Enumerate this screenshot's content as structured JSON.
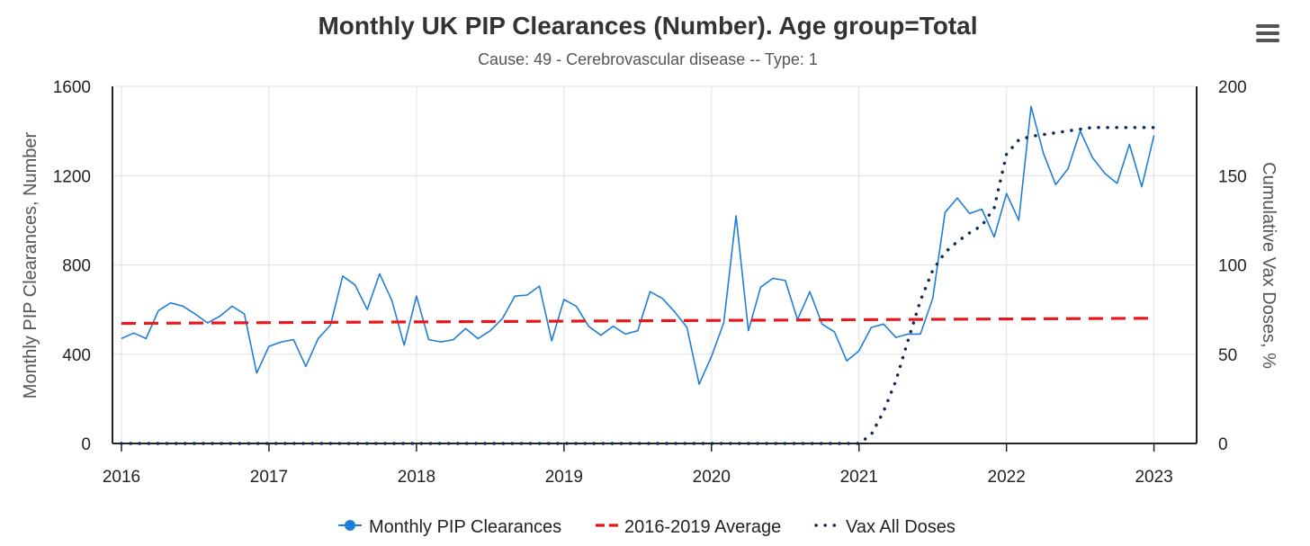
{
  "chart_data": {
    "type": "line",
    "title": "Monthly UK PIP Clearances (Number). Age group=Total",
    "subtitle": "Cause: 49 - Cerebrovascular disease -- Type: 1",
    "ylabel": "Monthly PIP Clearances, Number",
    "y2label": "Cumulative Vax Doses, %",
    "xlim": [
      2016,
      2023.35
    ],
    "ylim": [
      0,
      1600
    ],
    "y2lim": [
      0,
      200
    ],
    "x_ticks": [
      "2016",
      "2017",
      "2018",
      "2019",
      "2020",
      "2021",
      "2022",
      "2023"
    ],
    "y_ticks": [
      "0",
      "400",
      "800",
      "1200",
      "1600"
    ],
    "y2_ticks": [
      "0",
      "50",
      "100",
      "150",
      "200"
    ],
    "grid": true,
    "legend_position": "bottom",
    "series": [
      {
        "name": "Monthly PIP Clearances",
        "axis": "left",
        "color": "#1f7fd6",
        "style": "solid",
        "x": [
          2016.0,
          2016.0833,
          2016.1667,
          2016.25,
          2016.3333,
          2016.4167,
          2016.5,
          2016.5833,
          2016.6667,
          2016.75,
          2016.8333,
          2016.9167,
          2017.0,
          2017.0833,
          2017.1667,
          2017.25,
          2017.3333,
          2017.4167,
          2017.5,
          2017.5833,
          2017.6667,
          2017.75,
          2017.8333,
          2017.9167,
          2018.0,
          2018.0833,
          2018.1667,
          2018.25,
          2018.3333,
          2018.4167,
          2018.5,
          2018.5833,
          2018.6667,
          2018.75,
          2018.8333,
          2018.9167,
          2019.0,
          2019.0833,
          2019.1667,
          2019.25,
          2019.3333,
          2019.4167,
          2019.5,
          2019.5833,
          2019.6667,
          2019.75,
          2019.8333,
          2019.9167,
          2020.0,
          2020.0833,
          2020.1667,
          2020.25,
          2020.3333,
          2020.4167,
          2020.5,
          2020.5833,
          2020.6667,
          2020.75,
          2020.8333,
          2020.9167,
          2021.0,
          2021.0833,
          2021.1667,
          2021.25,
          2021.3333,
          2021.4167,
          2021.5,
          2021.5833,
          2021.6667,
          2021.75,
          2021.8333,
          2021.9167,
          2022.0,
          2022.0833,
          2022.1667,
          2022.25,
          2022.3333,
          2022.4167,
          2022.5,
          2022.5833,
          2022.6667,
          2022.75,
          2022.8333,
          2022.9167,
          2023.0
        ],
        "values": [
          470,
          495,
          470,
          595,
          630,
          615,
          580,
          540,
          570,
          615,
          580,
          315,
          435,
          455,
          465,
          345,
          470,
          530,
          750,
          710,
          600,
          760,
          640,
          440,
          660,
          465,
          455,
          465,
          515,
          470,
          505,
          560,
          660,
          665,
          705,
          460,
          645,
          615,
          525,
          485,
          525,
          490,
          505,
          680,
          650,
          590,
          520,
          265,
          390,
          540,
          1020,
          505,
          700,
          740,
          730,
          555,
          680,
          535,
          500,
          370,
          415,
          520,
          535,
          475,
          490,
          490,
          650,
          1035,
          1100,
          1030,
          1050,
          925,
          1120,
          1000,
          1510,
          1300,
          1160,
          1230,
          1400,
          1280,
          1210,
          1165,
          1340,
          1150,
          1380
        ]
      },
      {
        "name": "2016-2019 Average",
        "axis": "left",
        "color": "#e8171b",
        "style": "dashed",
        "x": [
          2016.0,
          2023.0
        ],
        "values": [
          538,
          561
        ]
      },
      {
        "name": "Vax All Doses",
        "axis": "right",
        "color": "#102a54",
        "style": "dotted",
        "x": [
          2016.0,
          2016.5,
          2017.0,
          2017.5,
          2018.0,
          2018.5,
          2019.0,
          2019.5,
          2020.0,
          2020.5,
          2020.9167,
          2021.0,
          2021.0833,
          2021.1667,
          2021.25,
          2021.3333,
          2021.4167,
          2021.5,
          2021.5833,
          2021.6667,
          2021.75,
          2021.8333,
          2021.9167,
          2022.0,
          2022.0833,
          2022.1667,
          2022.25,
          2022.3333,
          2022.4167,
          2022.5,
          2022.5833,
          2022.6667,
          2022.75,
          2022.8333,
          2022.9167,
          2023.0
        ],
        "values": [
          0,
          0,
          0,
          0,
          0,
          0,
          0,
          0,
          0,
          0,
          0,
          0,
          5,
          18,
          35,
          58,
          80,
          97,
          107,
          113,
          118,
          122,
          132,
          162,
          170,
          172,
          173,
          174,
          175,
          176,
          177,
          177,
          177,
          177,
          177,
          177
        ]
      }
    ]
  },
  "menu": {
    "icon": "hamburger-menu-icon"
  }
}
